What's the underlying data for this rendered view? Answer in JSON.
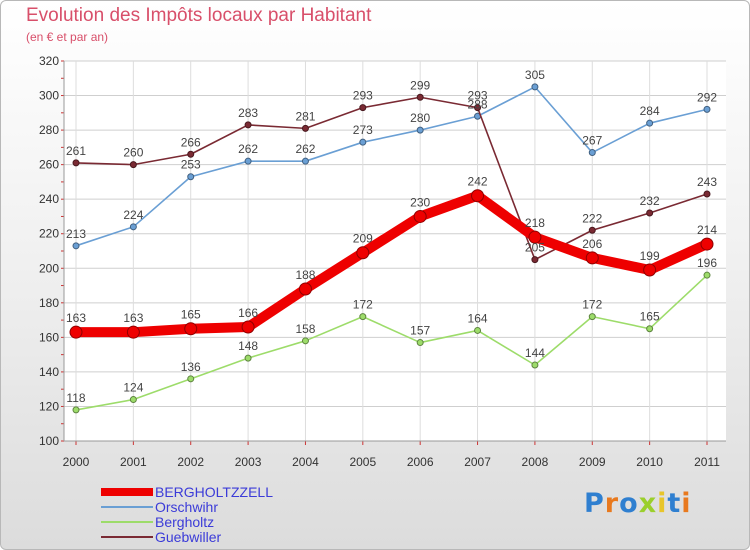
{
  "chart_data": {
    "type": "line",
    "title": "Evolution des Impôts locaux par Habitant",
    "subtitle": "(en € et par an)",
    "x": [
      "2000",
      "2001",
      "2002",
      "2003",
      "2004",
      "2005",
      "2006",
      "2007",
      "2008",
      "2009",
      "2010",
      "2011"
    ],
    "ylim": [
      100,
      320
    ],
    "yticks": [
      100,
      120,
      140,
      160,
      180,
      200,
      220,
      240,
      260,
      280,
      300,
      320
    ],
    "grid": true,
    "legend_position": "bottom-left",
    "series": [
      {
        "name": "Orschwihr",
        "color": "#6a9fd4",
        "values": [
          213,
          224,
          253,
          262,
          262,
          273,
          280,
          288,
          305,
          267,
          284,
          292
        ]
      },
      {
        "name": "Bergholtz",
        "color": "#9ddc6a",
        "values": [
          118,
          124,
          136,
          148,
          158,
          172,
          157,
          164,
          144,
          172,
          165,
          196
        ]
      },
      {
        "name": "Guebwiller",
        "color": "#7a2a33",
        "values": [
          261,
          260,
          266,
          283,
          281,
          293,
          299,
          293,
          205,
          222,
          232,
          243
        ]
      },
      {
        "name": "BERGHOLTZZELL",
        "color": "#ee0000",
        "values": [
          163,
          163,
          165,
          166,
          188,
          209,
          230,
          242,
          218,
          206,
          199,
          214
        ]
      }
    ],
    "legend_order": [
      "BERGHOLTZZELL",
      "Orschwihr",
      "Bergholtz",
      "Guebwiller"
    ]
  },
  "logo": {
    "text": "Proxiti",
    "colors": [
      "#2f7fd0",
      "#e8791e",
      "#2f7fd0",
      "#9bcf2c",
      "#e8c52a",
      "#2f7fd0",
      "#e8791e"
    ]
  }
}
